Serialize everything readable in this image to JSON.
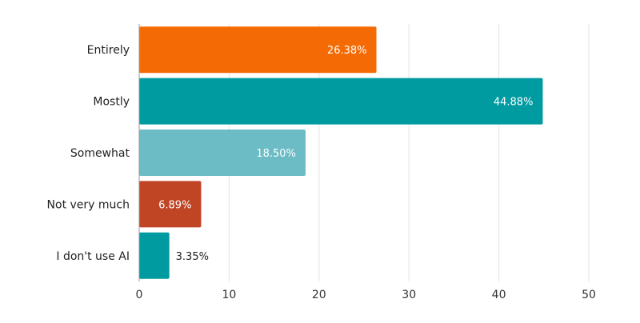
{
  "chart_data": {
    "type": "bar",
    "orientation": "horizontal",
    "title": "",
    "xlabel": "",
    "ylabel": "",
    "categories": [
      "Entirely",
      "Mostly",
      "Somewhat",
      "Not very much",
      "I don't use AI"
    ],
    "values": [
      26.38,
      44.88,
      18.5,
      6.89,
      3.35
    ],
    "value_labels": [
      "26.38%",
      "44.88%",
      "18.50%",
      "6.89%",
      "3.35%"
    ],
    "bar_colors": [
      "#F46A04",
      "#009BA1",
      "#6BBCC5",
      "#C04524",
      "#009BA1"
    ],
    "xlim": [
      0,
      50
    ],
    "xticks": [
      0,
      10,
      20,
      30,
      40,
      50
    ],
    "xtick_labels": [
      "0",
      "10",
      "20",
      "30",
      "40",
      "50"
    ],
    "grid": "vertical",
    "legend": "none"
  }
}
